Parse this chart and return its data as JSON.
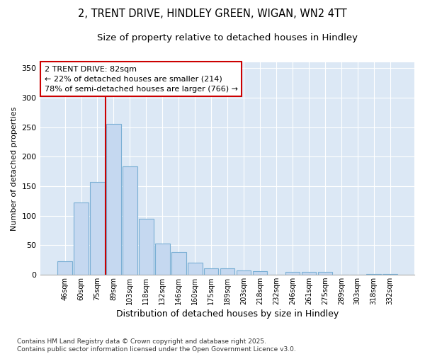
{
  "title1": "2, TRENT DRIVE, HINDLEY GREEN, WIGAN, WN2 4TT",
  "title2": "Size of property relative to detached houses in Hindley",
  "xlabel": "Distribution of detached houses by size in Hindley",
  "ylabel": "Number of detached properties",
  "categories": [
    "46sqm",
    "60sqm",
    "75sqm",
    "89sqm",
    "103sqm",
    "118sqm",
    "132sqm",
    "146sqm",
    "160sqm",
    "175sqm",
    "189sqm",
    "203sqm",
    "218sqm",
    "232sqm",
    "246sqm",
    "261sqm",
    "275sqm",
    "289sqm",
    "303sqm",
    "318sqm",
    "332sqm"
  ],
  "values": [
    23,
    122,
    157,
    255,
    183,
    95,
    53,
    38,
    20,
    10,
    11,
    7,
    6,
    0,
    5,
    4,
    4,
    0,
    0,
    1,
    1
  ],
  "bar_color": "#c5d8f0",
  "bar_edgecolor": "#7aafd4",
  "bg_color": "#dce8f5",
  "grid_color": "#ffffff",
  "fig_color": "#ffffff",
  "vline_color": "#cc0000",
  "vline_pos": 2.5,
  "annotation_text": "2 TRENT DRIVE: 82sqm\n← 22% of detached houses are smaller (214)\n78% of semi-detached houses are larger (766) →",
  "annotation_box_color": "#cc0000",
  "footnote": "Contains HM Land Registry data © Crown copyright and database right 2025.\nContains public sector information licensed under the Open Government Licence v3.0.",
  "ylim": [
    0,
    360
  ],
  "yticks": [
    0,
    50,
    100,
    150,
    200,
    250,
    300,
    350
  ]
}
